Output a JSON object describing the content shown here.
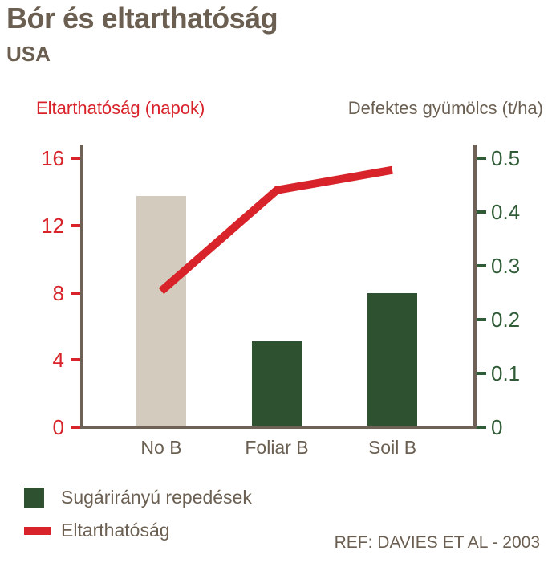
{
  "page": {
    "title": "Bór és eltarthatóság",
    "subtitle": "USA",
    "reference": "REF: DAVIES ET AL - 2003"
  },
  "colors": {
    "red": "#d8232a",
    "bar_green": "#2e5230",
    "green_text": "#2f5c36",
    "beige": "#d3cbbe",
    "brown_text": "#6b5f52",
    "axis_line": "#6e6156"
  },
  "legend": {
    "items": [
      {
        "label": "Sugárirányú repedések",
        "swatch": "square",
        "color": "#2e5230"
      },
      {
        "label": "Eltarthatóság",
        "swatch": "line",
        "color": "#d8232a"
      }
    ]
  },
  "chart_data": {
    "type": "bar+line",
    "title": "Bór és eltarthatóság",
    "subtitle": "USA",
    "categories": [
      "No B",
      "Foliar B",
      "Soil B"
    ],
    "series": [
      {
        "name": "Sugárirányú repedések",
        "type": "bar",
        "axis": "right",
        "unit": "t/ha",
        "values": [
          0.43,
          0.16,
          0.25
        ],
        "bar_colors": [
          "#d3cbbe",
          "#2e5230",
          "#2e5230"
        ]
      },
      {
        "name": "Eltarthatóság",
        "type": "line",
        "axis": "left",
        "unit": "napok",
        "values": [
          8.1,
          14.1,
          15.3
        ],
        "color": "#d8232a"
      }
    ],
    "left_axis": {
      "label": "Eltarthatóság (napok)",
      "ticks": [
        0,
        4,
        8,
        12,
        16
      ],
      "range": [
        0,
        16
      ],
      "color": "#d8232a"
    },
    "right_axis": {
      "label": "Defektes gyümölcs (t/ha)",
      "ticks": [
        "0",
        "0.1",
        "0.2",
        "0.3",
        "0.4",
        "0.5"
      ],
      "range": [
        0,
        0.5
      ],
      "color": "#2f5c36"
    },
    "grid": false,
    "legend_position": "bottom-left"
  }
}
